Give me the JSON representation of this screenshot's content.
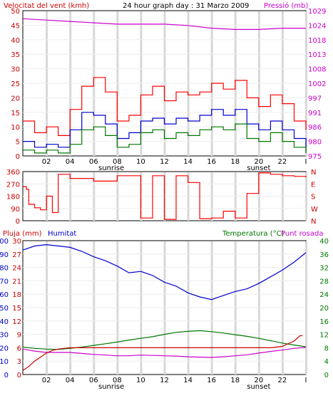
{
  "chart_data": [
    {
      "type": "line",
      "title": "24 hour graph day : 31 Marzo 2009",
      "left_axis_label": "Velocitat del vent (kmh)",
      "right_axis_label": "Pressió (mb)",
      "x_ticks": [
        "02",
        "04",
        "06",
        "08",
        "10",
        "12",
        "14",
        "16",
        "18",
        "20",
        "22",
        "I"
      ],
      "sun_labels": [
        "sunrise",
        "sunset"
      ],
      "left_ticks": [
        "0",
        "5",
        "10",
        "15",
        "20",
        "25",
        "30",
        "35",
        "40",
        "45",
        "50"
      ],
      "right_ticks": [
        "975",
        "980",
        "986",
        "991",
        "997",
        "1002",
        "1008",
        "1013",
        "1018",
        "1024",
        "1029"
      ],
      "ylim_left": [
        0,
        50
      ],
      "ylim_right": [
        975,
        1029
      ],
      "series": [
        {
          "color": "#ff0000",
          "axis": "left",
          "x": [
            0,
            1,
            2,
            3,
            4,
            5,
            6,
            7,
            8,
            9,
            10,
            11,
            12,
            13,
            14,
            15,
            16,
            17,
            18,
            19,
            20,
            21,
            22,
            23,
            24
          ],
          "values": [
            12,
            8,
            10,
            7,
            16,
            24,
            27,
            22,
            12,
            14,
            21,
            24,
            19,
            22,
            21,
            22,
            25,
            23,
            26,
            20,
            17,
            21,
            18,
            12,
            9
          ]
        },
        {
          "color": "#0000cc",
          "axis": "left",
          "x": [
            0,
            1,
            2,
            3,
            4,
            5,
            6,
            7,
            8,
            9,
            10,
            11,
            12,
            13,
            14,
            15,
            16,
            17,
            18,
            19,
            20,
            21,
            22,
            23,
            24
          ],
          "values": [
            5,
            3,
            4,
            3,
            9,
            15,
            14,
            11,
            6,
            8,
            12,
            13,
            11,
            13,
            12,
            14,
            16,
            14,
            16,
            11,
            9,
            12,
            9,
            6,
            3
          ]
        },
        {
          "color": "#007700",
          "axis": "left",
          "x": [
            0,
            1,
            2,
            3,
            4,
            5,
            6,
            7,
            8,
            9,
            10,
            11,
            12,
            13,
            14,
            15,
            16,
            17,
            18,
            19,
            20,
            21,
            22,
            23,
            24
          ],
          "values": [
            2,
            1,
            2,
            1,
            4,
            9,
            10,
            7,
            3,
            4,
            8,
            9,
            6,
            8,
            7,
            9,
            10,
            9,
            11,
            6,
            5,
            8,
            5,
            3,
            1
          ]
        },
        {
          "color": "#cc00cc",
          "axis": "right",
          "x": [
            0,
            2,
            4,
            6,
            8,
            10,
            12,
            14,
            16,
            18,
            20,
            22,
            24
          ],
          "values": [
            1026,
            1025.5,
            1025,
            1024.5,
            1024,
            1024,
            1024,
            1023.5,
            1022.5,
            1022,
            1022,
            1022.5,
            1022.5
          ]
        }
      ]
    },
    {
      "type": "line",
      "y_ticks": [
        "0",
        "90",
        "180",
        "270",
        "360"
      ],
      "right_labels": [
        "N",
        "W",
        "S",
        "E",
        "N"
      ],
      "ylim": [
        0,
        360
      ],
      "series": [
        {
          "color": "#ff0000",
          "x": [
            0,
            0.3,
            0.5,
            1,
            1.5,
            2,
            2.5,
            3,
            4,
            6,
            8,
            10,
            11,
            12,
            13,
            14,
            15,
            16,
            17,
            18,
            19,
            20,
            21,
            22,
            23,
            24
          ],
          "values": [
            250,
            230,
            120,
            95,
            80,
            180,
            60,
            340,
            310,
            290,
            330,
            20,
            330,
            10,
            330,
            280,
            15,
            20,
            70,
            20,
            200,
            350,
            340,
            330,
            325,
            320
          ]
        }
      ]
    },
    {
      "type": "line",
      "left_axis_label": "Pluja (mm)",
      "humidity_label": "Humitat",
      "temp_axis_label": "Temperatura (°C)",
      "dew_label": "Punt rosada",
      "x_ticks": [
        "02",
        "04",
        "06",
        "08",
        "10",
        "12",
        "14",
        "16",
        "18",
        "20",
        "22",
        "I"
      ],
      "sun_labels": [
        "sunrise",
        "sunset"
      ],
      "left_ticks": [
        "0",
        "10",
        "20",
        "30",
        "40",
        "50",
        "60",
        "70",
        "80",
        "90",
        "100"
      ],
      "rain_ticks": [
        "0",
        "3",
        "6",
        "9",
        "12",
        "15",
        "18",
        "21",
        "24",
        "27",
        "30"
      ],
      "right_ticks": [
        "0",
        "4",
        "8",
        "12",
        "16",
        "20",
        "24",
        "28",
        "32",
        "36",
        "40"
      ],
      "ylim_humidity": [
        0,
        100
      ],
      "ylim_temp": [
        0,
        40
      ],
      "series": [
        {
          "name": "Humitat",
          "color": "#0000cc",
          "axis": "humidity",
          "x": [
            0,
            1,
            2,
            3,
            4,
            5,
            6,
            7,
            8,
            9,
            10,
            11,
            12,
            13,
            14,
            15,
            16,
            17,
            18,
            19,
            20,
            21,
            22,
            23,
            24
          ],
          "values": [
            93,
            96,
            97,
            96,
            95,
            92,
            88,
            85,
            81,
            76,
            77,
            74,
            69,
            66,
            61,
            58,
            56,
            59,
            62,
            64,
            68,
            73,
            78,
            84,
            91
          ]
        },
        {
          "name": "Temperatura",
          "color": "#007700",
          "axis": "temp",
          "x": [
            0,
            1,
            2,
            3,
            4,
            5,
            6,
            7,
            8,
            9,
            10,
            11,
            12,
            13,
            14,
            15,
            16,
            17,
            18,
            19,
            20,
            21,
            22,
            23,
            24
          ],
          "values": [
            8.2,
            7.8,
            7.6,
            7.5,
            7.8,
            8.2,
            8.7,
            9.2,
            9.7,
            10.3,
            10.8,
            11.3,
            12.0,
            12.6,
            12.9,
            13.1,
            12.8,
            12.4,
            11.9,
            11.4,
            10.8,
            10.1,
            9.4,
            8.8,
            8.3
          ]
        },
        {
          "name": "Punt rosada",
          "color": "#cc00cc",
          "axis": "temp",
          "x": [
            0,
            1,
            2,
            3,
            4,
            5,
            6,
            7,
            8,
            9,
            10,
            11,
            12,
            13,
            14,
            15,
            16,
            17,
            18,
            19,
            20,
            21,
            22,
            23,
            24
          ],
          "values": [
            7.6,
            7.0,
            6.6,
            6.6,
            6.6,
            6.3,
            6.0,
            5.8,
            5.6,
            5.6,
            5.8,
            5.7,
            5.6,
            5.5,
            5.3,
            5.2,
            5.1,
            5.3,
            5.6,
            5.9,
            6.4,
            6.9,
            7.3,
            7.8,
            8.1
          ]
        },
        {
          "name": "Pluja",
          "color": "#cc0000",
          "axis": "humidity",
          "x": [
            0,
            0.5,
            1,
            1.5,
            2,
            2.5,
            3,
            4,
            6,
            8,
            10,
            12,
            14,
            16,
            18,
            20,
            21,
            22,
            23,
            23.5,
            23.7
          ],
          "values": [
            3,
            6,
            10,
            13,
            16,
            18,
            19,
            20,
            20,
            20,
            20,
            20,
            20,
            20,
            20,
            20,
            20,
            21,
            25,
            29,
            29
          ]
        }
      ]
    }
  ]
}
